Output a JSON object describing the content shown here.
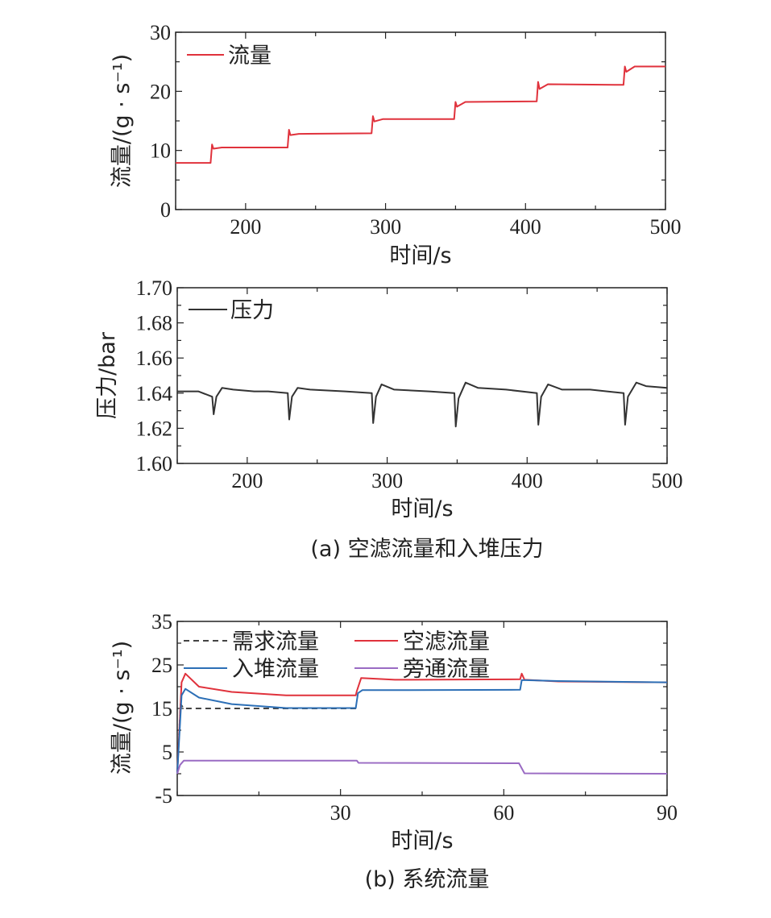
{
  "chart_data": [
    {
      "type": "line",
      "xlim": [
        150,
        500
      ],
      "ylim": [
        0,
        30
      ],
      "xticks": [
        "200",
        "300",
        "400",
        "500"
      ],
      "yticks": [
        "0",
        "10",
        "20",
        "30"
      ],
      "xlabel": "时间/s",
      "ylabel": "流量/(g · s⁻¹)",
      "legend_position": "top-left",
      "series": [
        {
          "name": "流量",
          "color": "#e0323c",
          "x": [
            150,
            175,
            176,
            177,
            183,
            230,
            231,
            232,
            238,
            290,
            291,
            292,
            298,
            349,
            350,
            351,
            357,
            408,
            409,
            410,
            416,
            470,
            471,
            472,
            478,
            500
          ],
          "y": [
            7.9,
            7.9,
            11,
            10.3,
            10.5,
            10.5,
            13.5,
            12.6,
            12.8,
            12.9,
            15.8,
            14.9,
            15.3,
            15.3,
            18.2,
            17.4,
            18.2,
            18.3,
            21.6,
            20.4,
            21.2,
            21.1,
            24.2,
            23.3,
            24.2,
            24.2
          ]
        }
      ]
    },
    {
      "type": "line",
      "xlim": [
        150,
        500
      ],
      "ylim": [
        1.6,
        1.7
      ],
      "xticks": [
        "200",
        "300",
        "400",
        "500"
      ],
      "yticks": [
        "1.60",
        "1.62",
        "1.64",
        "1.66",
        "1.68",
        "1.70"
      ],
      "xlabel": "时间/s",
      "ylabel": "压力/bar",
      "legend_position": "top-left",
      "series": [
        {
          "name": "压力",
          "color": "#333333",
          "x": [
            150,
            165,
            175,
            176,
            178,
            182,
            190,
            205,
            215,
            229,
            230,
            232,
            236,
            245,
            270,
            289,
            290,
            292,
            296,
            305,
            330,
            348,
            349,
            351,
            356,
            365,
            385,
            407,
            408,
            410,
            415,
            425,
            445,
            469,
            470,
            472,
            478,
            485,
            500
          ],
          "y": [
            1.641,
            1.641,
            1.638,
            1.628,
            1.638,
            1.643,
            1.642,
            1.641,
            1.641,
            1.64,
            1.625,
            1.638,
            1.643,
            1.642,
            1.641,
            1.64,
            1.623,
            1.638,
            1.645,
            1.642,
            1.641,
            1.64,
            1.621,
            1.637,
            1.646,
            1.643,
            1.642,
            1.64,
            1.622,
            1.638,
            1.645,
            1.642,
            1.642,
            1.64,
            1.622,
            1.638,
            1.646,
            1.644,
            1.643
          ]
        }
      ]
    },
    {
      "type": "line",
      "xlim": [
        0,
        90
      ],
      "ylim": [
        -5,
        35
      ],
      "xticks": [
        "30",
        "60",
        "90"
      ],
      "yticks": [
        "-5",
        "5",
        "15",
        "25",
        "35"
      ],
      "xlabel": "时间/s",
      "ylabel": "流量/(g · s⁻¹)",
      "legend_position": "top",
      "series": [
        {
          "name": "需求流量",
          "color": "#444444",
          "dash": true,
          "x": [
            0,
            0.6,
            1.2,
            12,
            33
          ],
          "y": [
            0,
            16,
            15,
            15,
            15
          ]
        },
        {
          "name": "空滤流量",
          "color": "#e0323c",
          "x": [
            0,
            0.8,
            1.5,
            4,
            10,
            20,
            32.8,
            33,
            33.8,
            40,
            63,
            63.3,
            63.8,
            70,
            90
          ],
          "y": [
            0,
            21,
            23,
            20,
            18.8,
            18,
            18,
            19,
            22,
            21.6,
            21.7,
            23,
            21.6,
            21.2,
            21
          ]
        },
        {
          "name": "入堆流量",
          "color": "#2c6fb6",
          "x": [
            0,
            0.8,
            1.5,
            4,
            10,
            20,
            32.8,
            33.2,
            34,
            40,
            63,
            63.3,
            64,
            70,
            90
          ],
          "y": [
            0,
            18,
            19.5,
            17.5,
            16,
            15.1,
            15.1,
            18.5,
            19.2,
            19.2,
            19.3,
            21.5,
            21.5,
            21.3,
            21
          ]
        },
        {
          "name": "旁通流量",
          "color": "#9a6bc3",
          "x": [
            0,
            0.5,
            1.2,
            3,
            33,
            33.3,
            62.8,
            63.8,
            90
          ],
          "y": [
            0,
            2,
            3,
            3,
            3,
            2.5,
            2.4,
            0.1,
            0
          ]
        }
      ]
    }
  ],
  "captions": {
    "a": "(a) 空滤流量和入堆压力",
    "b": "(b) 系统流量"
  }
}
